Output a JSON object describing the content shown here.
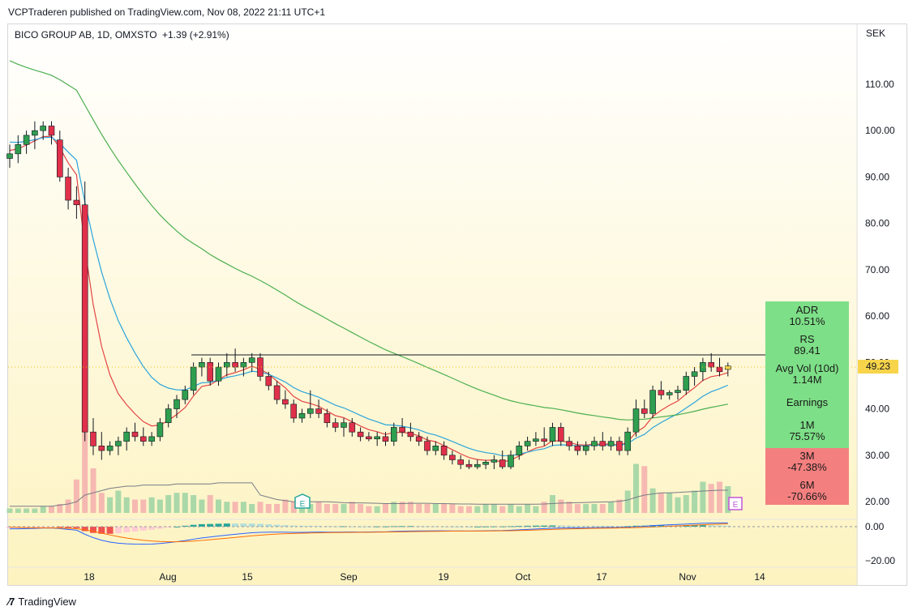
{
  "header": {
    "published_by": "VCPTraderen published on TradingView.com, Nov 08, 2022 21:11 UTC+1",
    "symbol_line": "BICO GROUP AB, 1D, OMXSTO",
    "change": "+1.39 (+2.91%)"
  },
  "price_axis": {
    "currency": "SEK",
    "ticks": [
      "110.00",
      "100.00",
      "90.00",
      "80.00",
      "70.00",
      "60.00",
      "50.00",
      "40.00",
      "30.00",
      "20.00"
    ],
    "last_price": "49.23"
  },
  "indicator_axis": {
    "ticks": [
      "0.00",
      "−20.00"
    ]
  },
  "time_axis": {
    "labels": [
      "18",
      "Aug",
      "15",
      "Sep",
      "19",
      "Oct",
      "17",
      "Nov",
      "14"
    ]
  },
  "stats": {
    "adr_label": "ADR",
    "adr_value": "10.51%",
    "rs_label": "RS",
    "rs_value": "89.41",
    "vol_label": "Avg Vol (10d)",
    "vol_value": "1.14M",
    "earn_label": "Earnings",
    "m1_label": "1M",
    "m1_value": "75.57%",
    "m3_label": "3M",
    "m3_value": "-47.38%",
    "m6_label": "6M",
    "m6_value": "-70.66%"
  },
  "markers": {
    "earnings_marker": "E"
  },
  "footer": {
    "brand": "TradingView"
  },
  "colors": {
    "up": "#26a69a",
    "down": "#ef5350",
    "background_top": "#ffffff",
    "background_bottom": "#fdf5c6",
    "ma_fast": "#e24545",
    "ma_mid": "#2ba5dc",
    "ma_slow": "#4caf50"
  },
  "chart_data": {
    "type": "candlestick",
    "interval": "1D",
    "y_range": [
      17,
      118
    ],
    "resistance_level": 51.5,
    "candles": [
      [
        94,
        97,
        92,
        95
      ],
      [
        95,
        99,
        93,
        97
      ],
      [
        97,
        100,
        95,
        99
      ],
      [
        99,
        102,
        96,
        100
      ],
      [
        100,
        102,
        98,
        101
      ],
      [
        101,
        102,
        97,
        99
      ],
      [
        98,
        100,
        89,
        90
      ],
      [
        90,
        92,
        83,
        85
      ],
      [
        85,
        88,
        81,
        84
      ],
      [
        84,
        89,
        33,
        35
      ],
      [
        35,
        38,
        30,
        32
      ],
      [
        32,
        35,
        29,
        31
      ],
      [
        31,
        33,
        30,
        32
      ],
      [
        32,
        34,
        30,
        33
      ],
      [
        33,
        36,
        31,
        35
      ],
      [
        35,
        37,
        33,
        34
      ],
      [
        34,
        36,
        32,
        33
      ],
      [
        33,
        35,
        32,
        34
      ],
      [
        34,
        38,
        33,
        37
      ],
      [
        37,
        41,
        36,
        40
      ],
      [
        40,
        43,
        38,
        42
      ],
      [
        42,
        45,
        41,
        44
      ],
      [
        44,
        50,
        43,
        49
      ],
      [
        49,
        51,
        47,
        50
      ],
      [
        50,
        51,
        45,
        46
      ],
      [
        46,
        50,
        45,
        49
      ],
      [
        49,
        52,
        47,
        50
      ],
      [
        50,
        53,
        48,
        49
      ],
      [
        49,
        51,
        47,
        50
      ],
      [
        50,
        52,
        48,
        51
      ],
      [
        51,
        52,
        46,
        47
      ],
      [
        47,
        48,
        44,
        45
      ],
      [
        45,
        46,
        41,
        42
      ],
      [
        42,
        44,
        40,
        41
      ],
      [
        41,
        42,
        37,
        38
      ],
      [
        38,
        40,
        37,
        39
      ],
      [
        39,
        44,
        38,
        40
      ],
      [
        40,
        42,
        38,
        39
      ],
      [
        39,
        40,
        36,
        37
      ],
      [
        37,
        38,
        35,
        36
      ],
      [
        36,
        38,
        34,
        37
      ],
      [
        37,
        38,
        34,
        35
      ],
      [
        35,
        36,
        33,
        34
      ],
      [
        34,
        35,
        33,
        33.5
      ],
      [
        33.5,
        35,
        32,
        34
      ],
      [
        34,
        35,
        32,
        33
      ],
      [
        33,
        37,
        32,
        36
      ],
      [
        36,
        38,
        34,
        35
      ],
      [
        35,
        37,
        33,
        34
      ],
      [
        34,
        35,
        32,
        33
      ],
      [
        33,
        34,
        30,
        31
      ],
      [
        31,
        33,
        30,
        32
      ],
      [
        32,
        33,
        29,
        30
      ],
      [
        30,
        31,
        28,
        29
      ],
      [
        29,
        30,
        27,
        28
      ],
      [
        28,
        29,
        27,
        27.5
      ],
      [
        27.5,
        29,
        27,
        28
      ],
      [
        28,
        29,
        27,
        28.5
      ],
      [
        28.5,
        30,
        27,
        29
      ],
      [
        29,
        31,
        27,
        27.5
      ],
      [
        27.5,
        31,
        27,
        30
      ],
      [
        30,
        33,
        29,
        32
      ],
      [
        32,
        34,
        31,
        33
      ],
      [
        33,
        35,
        32,
        33.5
      ],
      [
        33.5,
        36,
        32,
        33
      ],
      [
        33,
        37,
        32,
        36
      ],
      [
        36,
        37,
        32,
        33
      ],
      [
        33,
        34,
        31,
        32
      ],
      [
        32,
        33,
        30,
        31
      ],
      [
        31,
        33,
        30,
        32
      ],
      [
        32,
        34,
        31,
        33
      ],
      [
        33,
        35,
        31,
        32
      ],
      [
        32,
        34,
        31,
        33
      ],
      [
        33,
        34,
        30,
        31
      ],
      [
        31,
        36,
        30,
        35
      ],
      [
        35,
        42,
        34,
        40
      ],
      [
        40,
        42,
        38,
        39
      ],
      [
        39,
        45,
        38,
        44
      ],
      [
        44,
        46,
        42,
        43
      ],
      [
        43,
        44,
        42,
        43.5
      ],
      [
        43.5,
        45,
        42,
        44
      ],
      [
        44,
        48,
        43,
        47
      ],
      [
        47,
        49,
        45,
        48
      ],
      [
        48,
        51,
        46,
        50
      ],
      [
        50,
        52,
        48,
        49
      ],
      [
        49,
        51,
        47,
        48
      ],
      [
        48.5,
        50,
        47,
        49.23
      ]
    ],
    "volume": [
      2,
      2,
      2,
      2,
      3,
      3,
      4,
      6,
      15,
      55,
      20,
      9,
      7,
      10,
      7,
      6,
      6,
      7,
      6,
      8,
      9,
      9,
      8,
      6,
      8,
      6,
      5,
      5,
      5,
      4,
      5,
      4,
      4,
      6,
      5,
      4,
      4,
      5,
      4,
      4,
      4,
      5,
      4,
      3,
      3,
      4,
      5,
      5,
      5,
      4,
      4,
      4,
      4,
      4,
      3,
      3,
      3,
      4,
      4,
      3,
      4,
      3,
      4,
      3,
      5,
      8,
      6,
      5,
      4,
      4,
      4,
      4,
      5,
      6,
      10,
      22,
      21,
      11,
      9,
      9,
      7,
      8,
      10,
      14,
      13,
      14,
      12
    ],
    "volume_ma": [
      3,
      3,
      3,
      3,
      3,
      3,
      3.5,
      4,
      5,
      8,
      9,
      10,
      11,
      11.5,
      12,
      12,
      12.5,
      12.5,
      12.5,
      12.5,
      13,
      13,
      13,
      13,
      13,
      13.5,
      13.5,
      13.5,
      13.5,
      13.5,
      8,
      7,
      6,
      5.5,
      5,
      5,
      5,
      5,
      5,
      4.8,
      4.6,
      4.5,
      4.5,
      4.4,
      4.3,
      4.2,
      4.2,
      4.2,
      4.3,
      4.3,
      4.3,
      4.2,
      4.2,
      4.1,
      4.0,
      4.0,
      3.9,
      3.9,
      3.9,
      3.9,
      3.9,
      3.9,
      3.9,
      3.9,
      4.0,
      4.2,
      4.4,
      4.5,
      4.6,
      4.7,
      4.8,
      4.9,
      5.0,
      5.2,
      5.8,
      7,
      8,
      8.5,
      9,
      9,
      9.2,
      9.4,
      9.6,
      9.8,
      10,
      10.2,
      10.2
    ]
  }
}
